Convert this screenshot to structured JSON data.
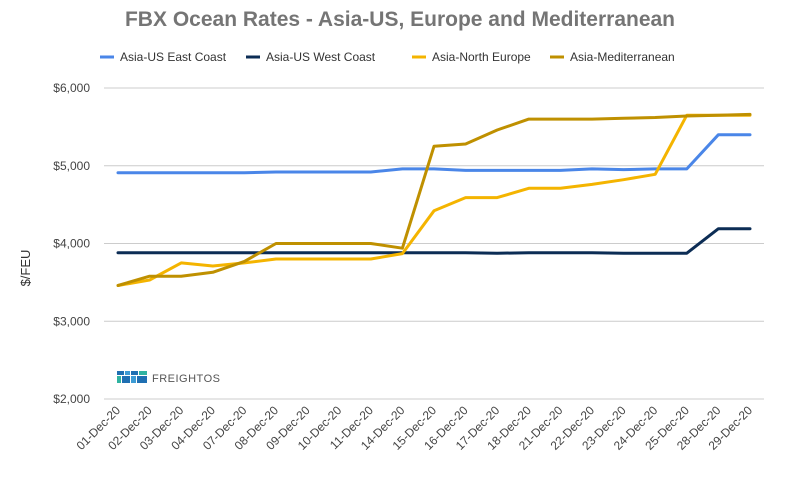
{
  "chart_data": {
    "type": "line",
    "title": "FBX Ocean Rates - Asia-US, Europe and Mediterranean",
    "xlabel": "",
    "ylabel": "$/FEU",
    "ylim": [
      2000,
      6000
    ],
    "yticks": [
      2000,
      3000,
      4000,
      5000,
      6000
    ],
    "ytick_labels": [
      "$2,000",
      "$3,000",
      "$4,000",
      "$5,000",
      "$6,000"
    ],
    "grid": true,
    "legend_position": "top",
    "categories": [
      "01-Dec-20",
      "02-Dec-20",
      "03-Dec-20",
      "04-Dec-20",
      "07-Dec-20",
      "08-Dec-20",
      "09-Dec-20",
      "10-Dec-20",
      "11-Dec-20",
      "14-Dec-20",
      "15-Dec-20",
      "16-Dec-20",
      "17-Dec-20",
      "18-Dec-20",
      "21-Dec-20",
      "22-Dec-20",
      "23-Dec-20",
      "24-Dec-20",
      "25-Dec-20",
      "28-Dec-20",
      "29-Dec-20"
    ],
    "series": [
      {
        "name": "Asia-US East Coast",
        "color": "#4a86e8",
        "values": [
          4910,
          4910,
          4910,
          4910,
          4910,
          4920,
          4920,
          4920,
          4920,
          4960,
          4960,
          4940,
          4940,
          4940,
          4940,
          4960,
          4950,
          4960,
          4960,
          5400,
          5400
        ]
      },
      {
        "name": "Asia-US West Coast",
        "color": "#0c2d55",
        "values": [
          3880,
          3880,
          3880,
          3880,
          3880,
          3880,
          3880,
          3880,
          3880,
          3880,
          3880,
          3880,
          3875,
          3880,
          3880,
          3880,
          3875,
          3875,
          3875,
          4190,
          4190
        ]
      },
      {
        "name": "Asia-North Europe",
        "color": "#f4b400",
        "values": [
          3460,
          3530,
          3750,
          3710,
          3750,
          3800,
          3800,
          3800,
          3800,
          3870,
          4420,
          4590,
          4590,
          4710,
          4710,
          4760,
          4820,
          4890,
          5650,
          5650,
          5650
        ]
      },
      {
        "name": "Asia-Mediterranean",
        "color": "#bf9000",
        "values": [
          3460,
          3580,
          3580,
          3630,
          3770,
          4000,
          4000,
          4000,
          4000,
          3940,
          5250,
          5280,
          5460,
          5600,
          5600,
          5600,
          5610,
          5620,
          5640,
          5650,
          5660
        ]
      }
    ]
  },
  "watermark": {
    "brand": "FREIGHTOS"
  }
}
